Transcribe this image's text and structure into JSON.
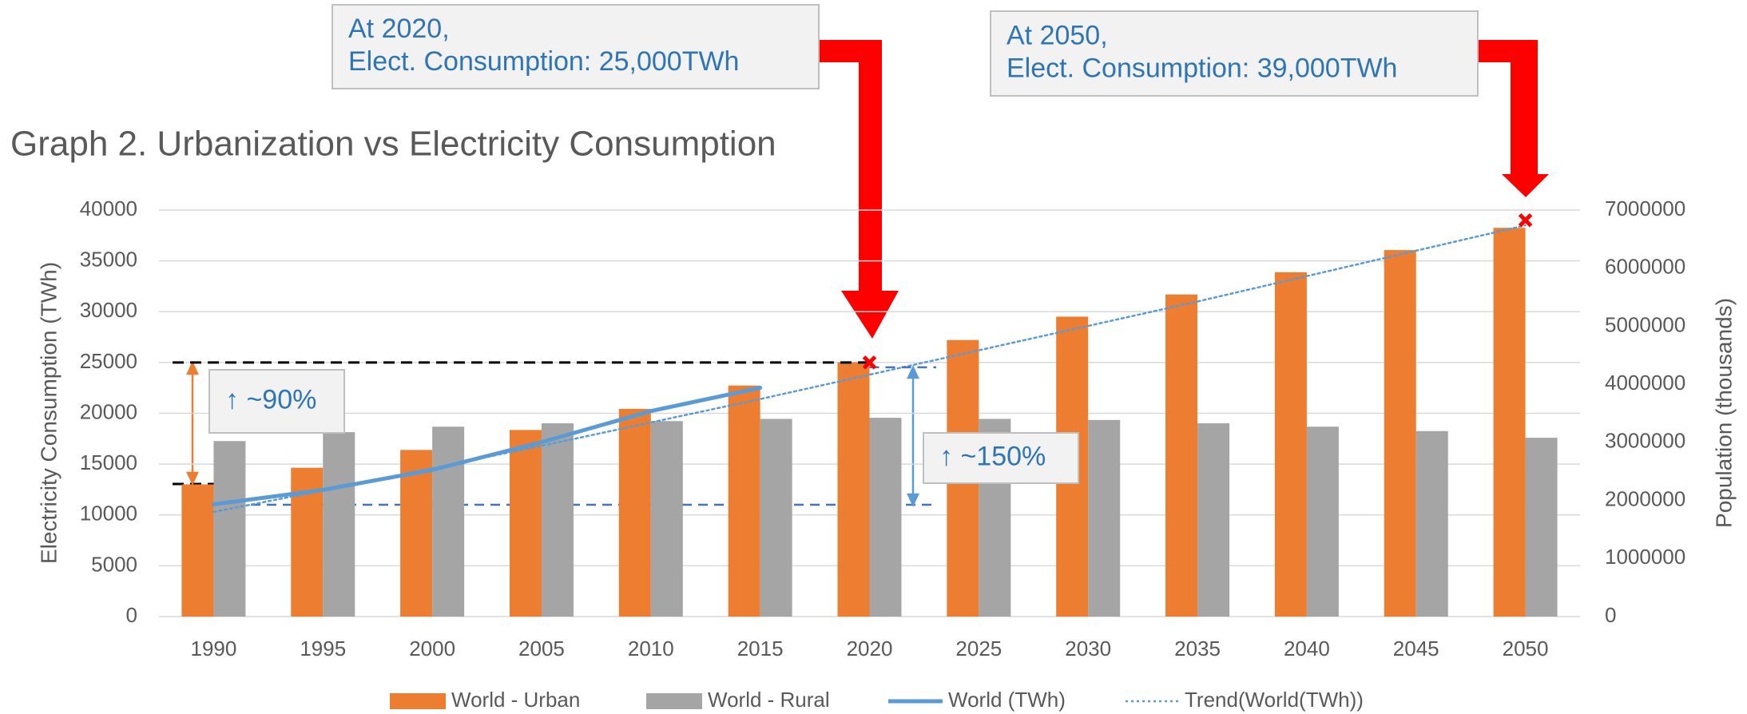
{
  "chart_data": {
    "type": "bar",
    "title": "Graph 2. Urbanization vs Electricity Consumption",
    "y_label": "Electricity  Consumption (TWh)",
    "y2_label": "Population (thousands)",
    "categories": [
      "1990",
      "1995",
      "2000",
      "2005",
      "2010",
      "2015",
      "2020",
      "2025",
      "2030",
      "2035",
      "2040",
      "2045",
      "2050"
    ],
    "ylim": [
      0,
      40000
    ],
    "yticks": [
      0,
      5000,
      10000,
      15000,
      20000,
      25000,
      30000,
      35000,
      40000
    ],
    "y2lim": [
      0,
      7000000
    ],
    "y2ticks": [
      0,
      1000000,
      2000000,
      3000000,
      4000000,
      5000000,
      6000000,
      7000000
    ],
    "grid": true,
    "legend": "bottom",
    "series": [
      {
        "name": "World - Urban",
        "type": "bar",
        "axis": "y2",
        "color": "#ed7d31",
        "values": [
          2276000,
          2563000,
          2869000,
          3213000,
          3577000,
          3978000,
          4380000,
          4762000,
          5164000,
          5546000,
          5929000,
          6311000,
          6694000
        ]
      },
      {
        "name": "World - Rural",
        "type": "bar",
        "axis": "y2",
        "color": "#a5a5a5",
        "values": [
          3022000,
          3175000,
          3270000,
          3328000,
          3366000,
          3404000,
          3423000,
          3404000,
          3385000,
          3328000,
          3270000,
          3194000,
          3079000
        ]
      },
      {
        "name": "World (TWh)",
        "type": "line",
        "color": "#5b9bd5",
        "values": [
          11040,
          12460,
          14430,
          17160,
          20220,
          22510,
          null,
          null,
          null,
          null,
          null,
          null,
          null
        ]
      },
      {
        "name": "Trend(World(TWh))",
        "type": "line",
        "dotted": true,
        "color": "#5b9bd5",
        "values": [
          10300,
          12400,
          14600,
          16800,
          19100,
          21400,
          23800,
          26200,
          28600,
          31000,
          33500,
          36000,
          38500
        ]
      }
    ],
    "markers": [
      {
        "x": "2020",
        "value": 25000
      },
      {
        "x": "2050",
        "value": 39000
      }
    ],
    "annotations": [
      {
        "lines": [
          "At 2020,",
          "Elect. Consumption: 25,000TWh"
        ]
      },
      {
        "lines": [
          "At 2050,",
          "Elect. Consumption: 39,000TWh"
        ]
      },
      {
        "lines": [
          "↑ ~90%"
        ]
      },
      {
        "lines": [
          "↑ ~150%"
        ]
      }
    ]
  }
}
